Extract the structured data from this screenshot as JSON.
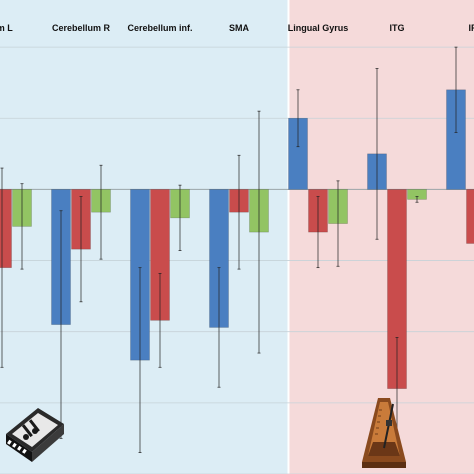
{
  "chart_data": {
    "type": "bar",
    "title": "",
    "xlabel": "",
    "ylabel": "",
    "grid": true,
    "categories": [
      "um L",
      "Cerebellum R",
      "Cerebellum inf.",
      "SMA",
      "Lingual Gyrus",
      "ITG",
      "IFG"
    ],
    "series": [
      {
        "color": "#4a7fc1",
        "values": [
          null,
          -0.95,
          -1.2,
          -0.97,
          0.5,
          0.25,
          0.7
        ],
        "errors": [
          null,
          0.8,
          0.65,
          0.42,
          0.2,
          0.6,
          0.3
        ]
      },
      {
        "color": "#c94c4c",
        "values": [
          -0.55,
          -0.42,
          -0.92,
          -0.16,
          -0.3,
          -1.4,
          -0.38
        ],
        "errors": [
          0.7,
          0.37,
          0.33,
          0.4,
          0.25,
          0.36,
          0.42
        ]
      },
      {
        "color": "#92c463",
        "values": [
          -0.26,
          -0.16,
          -0.2,
          -0.3,
          -0.24,
          -0.07,
          null
        ],
        "errors": [
          0.3,
          0.33,
          0.23,
          0.85,
          0.3,
          0.02,
          null
        ]
      }
    ],
    "ylim": [
      -2.0,
      1.05
    ],
    "background_groups": [
      {
        "range": [
          0,
          3
        ],
        "color": "#dcedf5"
      },
      {
        "range": [
          4,
          6
        ],
        "color": "#f5dada"
      }
    ],
    "icons": [
      {
        "name": "music-app-icon",
        "position": "bottom-left"
      },
      {
        "name": "metronome-icon",
        "position": "bottom-right"
      }
    ]
  }
}
